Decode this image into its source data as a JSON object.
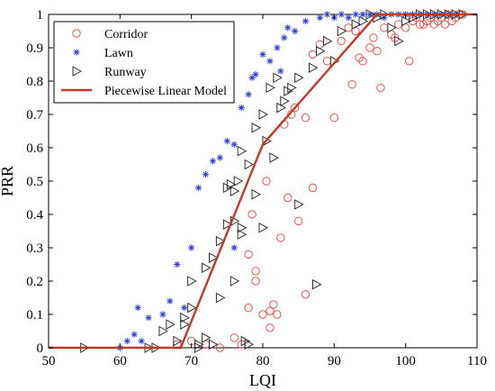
{
  "chart_data": {
    "type": "scatter",
    "xlabel": "LQI",
    "ylabel": "PRR",
    "xlim": [
      50,
      110
    ],
    "ylim": [
      0,
      1
    ],
    "xticks": [
      50,
      60,
      70,
      80,
      90,
      100,
      110
    ],
    "yticks": [
      0,
      0.1,
      0.2,
      0.3,
      0.4,
      0.5,
      0.6,
      0.7,
      0.8,
      0.9,
      1
    ],
    "grid": false,
    "legend_position": "top-left",
    "series": [
      {
        "name": "Corridor",
        "marker": "circle",
        "color": "#e8544a",
        "points": [
          [
            68,
            0.01
          ],
          [
            70,
            0.02
          ],
          [
            72,
            0.01
          ],
          [
            74,
            0
          ],
          [
            76,
            0.03
          ],
          [
            77,
            0.01
          ],
          [
            78,
            0.12
          ],
          [
            78,
            0.28
          ],
          [
            78.5,
            0.4
          ],
          [
            79,
            0.23
          ],
          [
            79,
            0.2
          ],
          [
            80,
            0.1
          ],
          [
            80.5,
            0.5
          ],
          [
            81,
            0.11
          ],
          [
            81.5,
            0.13
          ],
          [
            81,
            0.06
          ],
          [
            82,
            0.1
          ],
          [
            82.5,
            0.33
          ],
          [
            83,
            0.67
          ],
          [
            83.5,
            0.45
          ],
          [
            84,
            0.7
          ],
          [
            84.5,
            0.72
          ],
          [
            85,
            0.38
          ],
          [
            86,
            0.16
          ],
          [
            86,
            0.69
          ],
          [
            87,
            0.48
          ],
          [
            87,
            0.88
          ],
          [
            88,
            0.91
          ],
          [
            89,
            0.86
          ],
          [
            90,
            0.69
          ],
          [
            91,
            0.92
          ],
          [
            92,
            0.96
          ],
          [
            92.5,
            0.79
          ],
          [
            93,
            0.95
          ],
          [
            93.5,
            0.87
          ],
          [
            94,
            0.86
          ],
          [
            95,
            0.9
          ],
          [
            95.5,
            0.93
          ],
          [
            96,
            0.89
          ],
          [
            96.5,
            0.78
          ],
          [
            97,
            0.96
          ],
          [
            98,
            0.94
          ],
          [
            98.5,
            0.93
          ],
          [
            99,
            0.97
          ],
          [
            100,
            0.96
          ],
          [
            100.5,
            0.86
          ],
          [
            101,
            0.98
          ],
          [
            101.5,
            0.99
          ],
          [
            102,
            0.97
          ],
          [
            102.5,
            0.97
          ],
          [
            103,
            0.98
          ],
          [
            103.5,
            0.99
          ],
          [
            104,
            0.97
          ],
          [
            104.5,
            0.98
          ],
          [
            105,
            0.99
          ],
          [
            105.5,
            0.97
          ],
          [
            106,
            1
          ],
          [
            106.5,
            0.98
          ],
          [
            107,
            0.99
          ],
          [
            107.5,
            1
          ],
          [
            108,
            1
          ]
        ]
      },
      {
        "name": "Lawn",
        "marker": "star",
        "color": "#2f3fd6",
        "points": [
          [
            60,
            0
          ],
          [
            61,
            0.02
          ],
          [
            62,
            0.04
          ],
          [
            62.5,
            0.12
          ],
          [
            63,
            0.02
          ],
          [
            64,
            0.09
          ],
          [
            66,
            0.1
          ],
          [
            67,
            0.14
          ],
          [
            68,
            0.25
          ],
          [
            69,
            0.12
          ],
          [
            70,
            0.3
          ],
          [
            71,
            0.48
          ],
          [
            72,
            0.52
          ],
          [
            73,
            0.56
          ],
          [
            74,
            0.57
          ],
          [
            75,
            0.62
          ],
          [
            76,
            0.3
          ],
          [
            76,
            0.61
          ],
          [
            77,
            0.72
          ],
          [
            78,
            0.76
          ],
          [
            78.5,
            0.81
          ],
          [
            79,
            0.82
          ],
          [
            80,
            0.88
          ],
          [
            81,
            0.86
          ],
          [
            82,
            0.9
          ],
          [
            82.5,
            0.83
          ],
          [
            83,
            0.93
          ],
          [
            83.5,
            0.96
          ],
          [
            84.5,
            0.95
          ],
          [
            86,
            0.98
          ],
          [
            88,
            0.99
          ],
          [
            89,
            1
          ],
          [
            90,
            0.99
          ],
          [
            91,
            1
          ],
          [
            92,
            0.99
          ],
          [
            93,
            1
          ],
          [
            94,
            1
          ],
          [
            95,
            1
          ],
          [
            96,
            1
          ],
          [
            97,
            0.99
          ],
          [
            98,
            1
          ],
          [
            99,
            1
          ],
          [
            100,
            1
          ],
          [
            101,
            1
          ],
          [
            102,
            1
          ],
          [
            103,
            1
          ],
          [
            104,
            1
          ],
          [
            105,
            1
          ],
          [
            106,
            1
          ],
          [
            107,
            1
          ]
        ]
      },
      {
        "name": "Runway",
        "marker": "triangle-right",
        "color": "#303030",
        "points": [
          [
            55,
            0
          ],
          [
            64,
            0
          ],
          [
            65,
            0
          ],
          [
            66,
            0.05
          ],
          [
            67,
            0.07
          ],
          [
            68,
            0.02
          ],
          [
            69,
            0.07
          ],
          [
            69,
            0.09
          ],
          [
            70,
            0.12
          ],
          [
            70,
            0.2
          ],
          [
            71,
            0
          ],
          [
            71,
            0.01
          ],
          [
            72,
            0.03
          ],
          [
            72,
            0.24
          ],
          [
            73,
            0.01
          ],
          [
            73,
            0.27
          ],
          [
            74,
            0.15
          ],
          [
            74,
            0.32
          ],
          [
            75,
            0.37
          ],
          [
            75,
            0.48
          ],
          [
            75.5,
            0.49
          ],
          [
            76,
            0.2
          ],
          [
            76,
            0.38
          ],
          [
            76,
            0.47
          ],
          [
            76.5,
            0.5
          ],
          [
            77,
            0.34
          ],
          [
            77,
            0.36
          ],
          [
            77,
            0.59
          ],
          [
            77.5,
            0.02
          ],
          [
            78,
            0.01
          ],
          [
            78,
            0.55
          ],
          [
            79,
            0.46
          ],
          [
            79,
            0.66
          ],
          [
            80,
            0.36
          ],
          [
            80,
            0.7
          ],
          [
            80.5,
            0.62
          ],
          [
            81,
            0.78
          ],
          [
            81.5,
            0.57
          ],
          [
            82,
            0.81
          ],
          [
            82.5,
            0.72
          ],
          [
            83,
            0.74
          ],
          [
            83.5,
            0.77
          ],
          [
            84,
            0.78
          ],
          [
            85,
            0.43
          ],
          [
            85,
            0.81
          ],
          [
            87,
            0.84
          ],
          [
            87.5,
            0.19
          ],
          [
            88,
            0.89
          ],
          [
            89,
            0.92
          ],
          [
            90,
            0.86
          ],
          [
            91,
            0.95
          ],
          [
            93,
            0.97
          ],
          [
            94,
            0.98
          ],
          [
            95,
            1
          ],
          [
            96,
            0.99
          ],
          [
            97,
            1
          ],
          [
            98,
            0.96
          ],
          [
            99,
            0.92
          ],
          [
            100,
            0.98
          ],
          [
            101,
            0.99
          ],
          [
            102,
            1
          ],
          [
            103,
            1
          ],
          [
            104,
            1
          ],
          [
            105,
            1
          ],
          [
            106,
            1
          ],
          [
            107,
            1
          ],
          [
            108,
            1
          ]
        ]
      },
      {
        "name": "Piecewise Linear Model",
        "marker": "line",
        "color": "#c0392b",
        "points": [
          [
            50,
            0
          ],
          [
            68.5,
            0
          ],
          [
            80,
            0.61
          ],
          [
            96,
            1
          ],
          [
            110,
            1
          ]
        ]
      }
    ]
  }
}
